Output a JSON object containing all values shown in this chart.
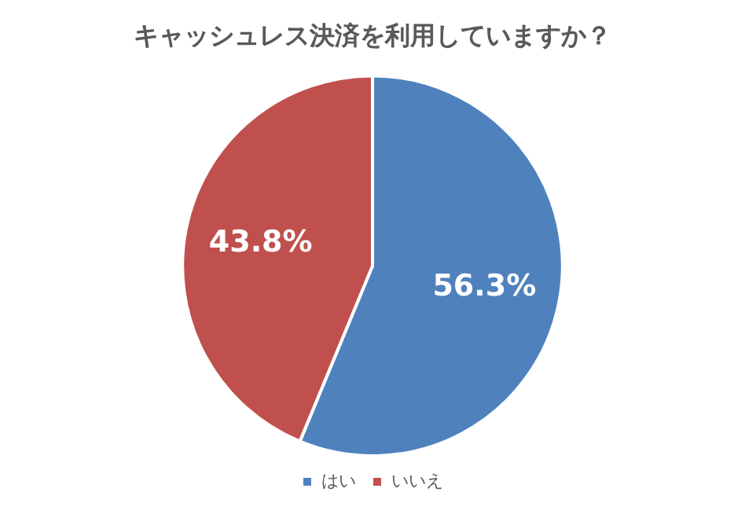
{
  "chart_data": {
    "type": "pie",
    "title": "キャッシュレス決済を利用していますか？",
    "categories": [
      "はい",
      "いいえ"
    ],
    "values": [
      56.3,
      43.8
    ],
    "colors": [
      "#4f81bd",
      "#c0504d"
    ],
    "value_labels": [
      "56.3%",
      "43.8%"
    ],
    "legend": "bottom"
  }
}
